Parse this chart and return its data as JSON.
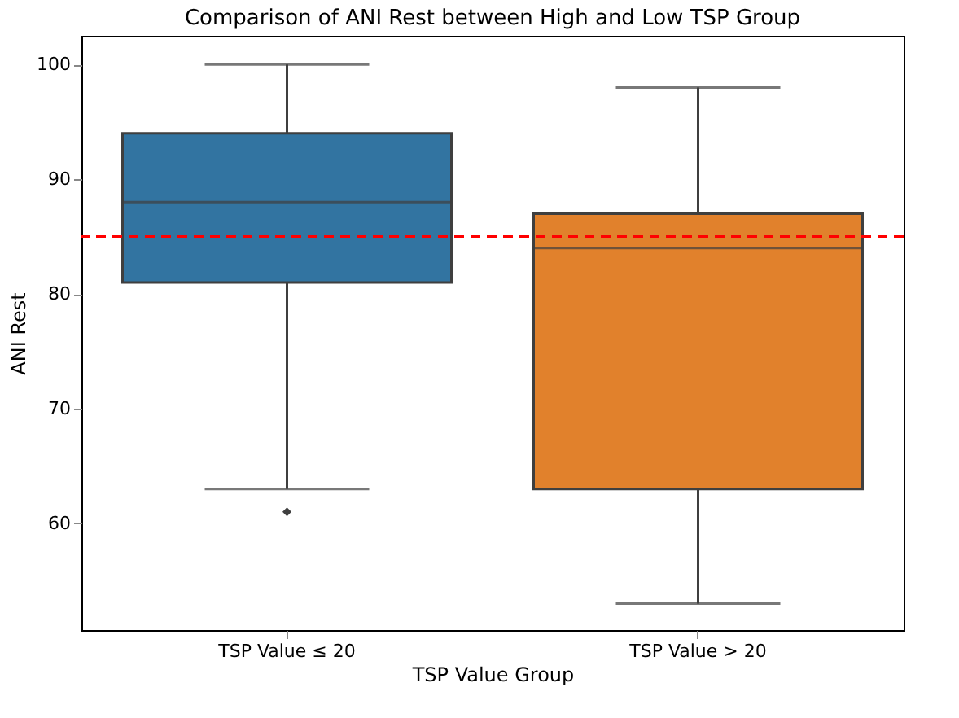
{
  "chart_data": {
    "type": "box",
    "title": "Comparison of ANI Rest between High and Low TSP Group",
    "xlabel": "TSP Value Group",
    "ylabel": "ANI Rest",
    "categories": [
      "TSP Value ≤ 20",
      "TSP Value > 20"
    ],
    "boxes": [
      {
        "low": 63,
        "q1": 81,
        "median": 88,
        "q3": 94,
        "high": 100,
        "outliers": [
          61
        ]
      },
      {
        "low": 53,
        "q1": 63,
        "median": 84,
        "q3": 87,
        "high": 98
      }
    ],
    "colors": [
      "#3274a1",
      "#e1812c"
    ],
    "ylim": [
      50.7,
      102.5
    ],
    "yticks": [
      60,
      70,
      80,
      90,
      100
    ],
    "grid": false,
    "ref_lines": [
      {
        "axis": "y",
        "value": 85,
        "color": "#ff0000",
        "line_style": "dashed"
      }
    ]
  }
}
